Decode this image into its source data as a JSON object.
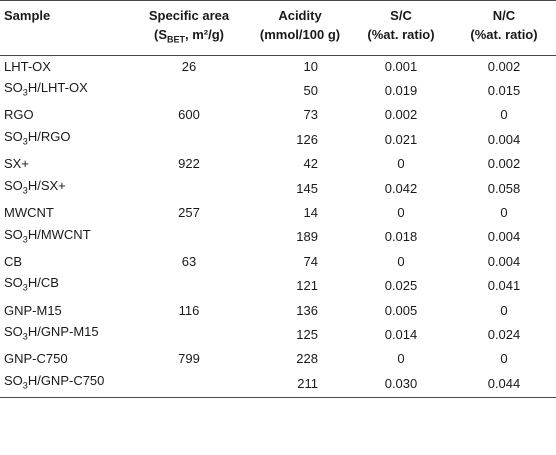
{
  "header": {
    "sample": "Sample",
    "area_line1": "Specific area",
    "area_line2": "(S",
    "area_line2_sub": "BET",
    "area_line2_end": ", m²/g)",
    "acidity_line1": "Acidity",
    "acidity_line2": "(mmol/100 g)",
    "sc_line1": "S/C",
    "sc_line2": "(%at. ratio)",
    "nc_line1": "N/C",
    "nc_line2": "(%at. ratio)"
  },
  "rows": [
    {
      "sample": "LHT-OX",
      "area": "26",
      "acidity": "10",
      "sc": "0.001",
      "nc": "0.002"
    },
    {
      "sample_pre": "SO",
      "sample_sub": "3",
      "sample_post": "H/LHT-OX",
      "area": "",
      "acidity": "50",
      "sc": "0.019",
      "nc": "0.015"
    },
    {
      "sample": "RGO",
      "area": "600",
      "acidity": "73",
      "sc": "0.002",
      "nc": "0"
    },
    {
      "sample_pre": "SO",
      "sample_sub": "3",
      "sample_post": "H/RGO",
      "area": "",
      "acidity": "126",
      "sc": "0.021",
      "nc": "0.004"
    },
    {
      "sample": "SX+",
      "area": "922",
      "acidity": "42",
      "sc": "0",
      "nc": "0.002"
    },
    {
      "sample_pre": "SO",
      "sample_sub": "3",
      "sample_post": "H/SX+",
      "area": "",
      "acidity": "145",
      "sc": "0.042",
      "nc": "0.058"
    },
    {
      "sample": "MWCNT",
      "area": "257",
      "acidity": "14",
      "sc": "0",
      "nc": "0"
    },
    {
      "sample_pre": "SO",
      "sample_sub": "3",
      "sample_post": "H/MWCNT",
      "area": "",
      "acidity": "189",
      "sc": "0.018",
      "nc": "0.004"
    },
    {
      "sample": "CB",
      "area": "63",
      "acidity": "74",
      "sc": "0",
      "nc": "0.004"
    },
    {
      "sample_pre": "SO",
      "sample_sub": "3",
      "sample_post": "H/CB",
      "area": "",
      "acidity": "121",
      "sc": "0.025",
      "nc": "0.041"
    },
    {
      "sample": "GNP-M15",
      "area": "116",
      "acidity": "136",
      "sc": "0.005",
      "nc": "0"
    },
    {
      "sample_pre": "SO",
      "sample_sub": "3",
      "sample_post": "H/GNP-M15",
      "area": "",
      "acidity": "125",
      "sc": "0.014",
      "nc": "0.024"
    },
    {
      "sample": "GNP-C750",
      "area": "799",
      "acidity": "228",
      "sc": "0",
      "nc": "0"
    },
    {
      "sample_pre": "SO",
      "sample_sub": "3",
      "sample_post": "H/GNP-C750",
      "area": "",
      "acidity": "211",
      "sc": "0.030",
      "nc": "0.044"
    }
  ]
}
